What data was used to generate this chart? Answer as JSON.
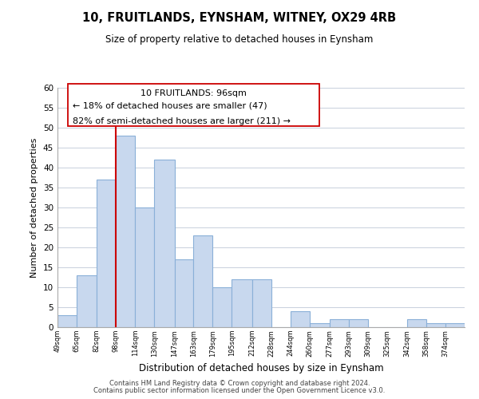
{
  "title": "10, FRUITLANDS, EYNSHAM, WITNEY, OX29 4RB",
  "subtitle": "Size of property relative to detached houses in Eynsham",
  "xlabel": "Distribution of detached houses by size in Eynsham",
  "ylabel": "Number of detached properties",
  "bar_color": "#c8d8ee",
  "bar_edge_color": "#8ab0d8",
  "background_color": "#ffffff",
  "grid_color": "#c8d0dc",
  "marker_line_color": "#cc0000",
  "annotation_text_line1": "10 FRUITLANDS: 96sqm",
  "annotation_text_line2": "← 18% of detached houses are smaller (47)",
  "annotation_text_line3": "82% of semi-detached houses are larger (211) →",
  "footer_line1": "Contains HM Land Registry data © Crown copyright and database right 2024.",
  "footer_line2": "Contains public sector information licensed under the Open Government Licence v3.0.",
  "bin_labels": [
    "49sqm",
    "65sqm",
    "82sqm",
    "98sqm",
    "114sqm",
    "130sqm",
    "147sqm",
    "163sqm",
    "179sqm",
    "195sqm",
    "212sqm",
    "228sqm",
    "244sqm",
    "260sqm",
    "277sqm",
    "293sqm",
    "309sqm",
    "325sqm",
    "342sqm",
    "358sqm",
    "374sqm"
  ],
  "bin_edges": [
    49,
    65,
    82,
    98,
    114,
    130,
    147,
    163,
    179,
    195,
    212,
    228,
    244,
    260,
    277,
    293,
    309,
    325,
    342,
    358,
    374,
    390
  ],
  "counts": [
    3,
    13,
    37,
    48,
    30,
    42,
    17,
    23,
    10,
    12,
    12,
    0,
    4,
    1,
    2,
    2,
    0,
    0,
    2,
    1,
    1
  ],
  "marker_bin_index": 3,
  "ylim": [
    0,
    60
  ],
  "yticks": [
    0,
    5,
    10,
    15,
    20,
    25,
    30,
    35,
    40,
    45,
    50,
    55,
    60
  ]
}
